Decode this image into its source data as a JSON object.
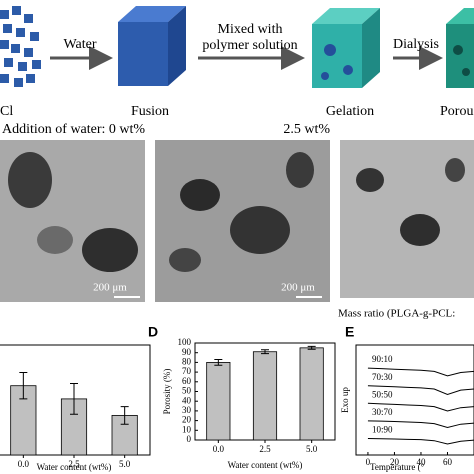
{
  "schematic": {
    "steps": [
      "Cl",
      "Fusion",
      "Gelation",
      "Porous"
    ],
    "arrows": [
      "Water",
      "Mixed with",
      "polymer solution",
      "Dialysis"
    ]
  },
  "sem": {
    "labels": [
      "Addition of water: 0 wt%",
      "2.5 wt%"
    ],
    "scale_bars": [
      "200 μm",
      "200 μm"
    ],
    "caption": "Mass ratio (PLGA-g-PCL:"
  },
  "chart_data": [
    {
      "type": "bar",
      "categories": [
        "0.0",
        "2.5",
        "5.0"
      ],
      "values": [
        63,
        51,
        36
      ],
      "errors": [
        12,
        14,
        8
      ],
      "color": "#c0c0c0",
      "ylim": [
        0,
        100
      ],
      "xlabel": "Water content (wt%)"
    },
    {
      "type": "bar",
      "panel": "D",
      "categories": [
        "0.0",
        "2.5",
        "5.0"
      ],
      "values": [
        80,
        91,
        95
      ],
      "errors": [
        3,
        2,
        1.5
      ],
      "color": "#c0c0c0",
      "ylim": [
        0,
        100
      ],
      "yticks": [
        0,
        10,
        20,
        30,
        40,
        50,
        60,
        70,
        80,
        90,
        100
      ],
      "ylabel": "Porosity (%)",
      "xlabel": "Water content (wt%)"
    },
    {
      "type": "line",
      "panel": "E",
      "x": [
        0,
        10,
        20,
        30,
        40,
        50,
        60,
        70,
        80
      ],
      "xlim": [
        -9,
        80
      ],
      "xticks": [
        0,
        20,
        40,
        60
      ],
      "ylim": [
        0,
        10
      ],
      "ylabel": "Exo up",
      "xlabel": "Temperature (°",
      "series": [
        {
          "name": "90:10",
          "color": "#000000",
          "values": [
            7.9,
            7.85,
            7.8,
            7.75,
            7.7,
            7.6,
            7.2,
            7.5,
            7.6
          ]
        },
        {
          "name": "70:30",
          "color": "#000000",
          "values": [
            6.3,
            6.25,
            6.2,
            6.15,
            6.1,
            6.0,
            5.5,
            5.9,
            6.0
          ]
        },
        {
          "name": "50:50",
          "color": "#000000",
          "values": [
            4.7,
            4.65,
            4.6,
            4.55,
            4.5,
            4.4,
            4.0,
            4.3,
            4.4
          ]
        },
        {
          "name": "30:70",
          "color": "#000000",
          "values": [
            3.1,
            3.08,
            3.05,
            3.0,
            2.95,
            2.85,
            2.5,
            2.8,
            2.9
          ]
        },
        {
          "name": "10:90",
          "color": "#000000",
          "values": [
            1.5,
            1.48,
            1.45,
            1.42,
            1.4,
            1.3,
            1.0,
            1.25,
            1.35
          ]
        }
      ]
    }
  ]
}
